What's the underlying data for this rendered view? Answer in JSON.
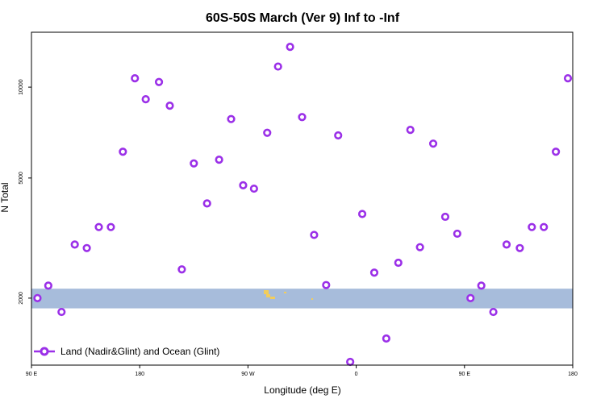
{
  "chart_data": {
    "type": "scatter",
    "title": "60S-50S March (Ver 9)   Inf to -Inf",
    "xlabel": "Longitude (deg E)",
    "ylabel": "N Total",
    "x_ticks": [
      {
        "value": 0,
        "label": "90 E"
      },
      {
        "value": 90,
        "label": "180"
      },
      {
        "value": 180,
        "label": "90 W"
      },
      {
        "value": 270,
        "label": "0"
      },
      {
        "value": 360,
        "label": "90 E"
      },
      {
        "value": 450,
        "label": "180"
      }
    ],
    "y_ticks": [
      {
        "value": 2000,
        "label": "2000"
      },
      {
        "value": 5000,
        "label": "5000"
      },
      {
        "value": 10000,
        "label": "10000"
      }
    ],
    "xlim": [
      0,
      450
    ],
    "ylim": [
      1200,
      15200
    ],
    "y_scale": "log",
    "band": {
      "ymin": 1850,
      "ymax": 2150,
      "color": "#a7bcdb"
    },
    "land_color": "#f2cd5c",
    "legend": {
      "position": "bottom-left"
    },
    "series": [
      {
        "name": "Land (Nadir&Glint) and Ocean (Glint)",
        "color": "#9b30e8",
        "points": [
          [
            5,
            2000
          ],
          [
            14,
            2200
          ],
          [
            25,
            1800
          ],
          [
            36,
            3010
          ],
          [
            46,
            2930
          ],
          [
            56,
            3440
          ],
          [
            66,
            3440
          ],
          [
            76,
            6110
          ],
          [
            86,
            10700
          ],
          [
            95,
            9120
          ],
          [
            106,
            10400
          ],
          [
            115,
            8680
          ],
          [
            125,
            2490
          ],
          [
            135,
            5590
          ],
          [
            146,
            4120
          ],
          [
            156,
            5750
          ],
          [
            166,
            7840
          ],
          [
            176,
            4730
          ],
          [
            185,
            4610
          ],
          [
            196,
            7060
          ],
          [
            205,
            11700
          ],
          [
            215,
            13600
          ],
          [
            225,
            7960
          ],
          [
            235,
            3240
          ],
          [
            245,
            2210
          ],
          [
            255,
            6920
          ],
          [
            265,
            1230
          ],
          [
            275,
            3800
          ],
          [
            285,
            2430
          ],
          [
            295,
            1470
          ],
          [
            305,
            2620
          ],
          [
            315,
            7220
          ],
          [
            323,
            2950
          ],
          [
            334,
            6500
          ],
          [
            344,
            3720
          ],
          [
            354,
            3270
          ],
          [
            365,
            2000
          ],
          [
            374,
            2200
          ],
          [
            384,
            1800
          ],
          [
            395,
            3010
          ],
          [
            406,
            2930
          ],
          [
            416,
            3440
          ],
          [
            426,
            3440
          ],
          [
            436,
            6110
          ],
          [
            446,
            10700
          ]
        ]
      }
    ]
  }
}
